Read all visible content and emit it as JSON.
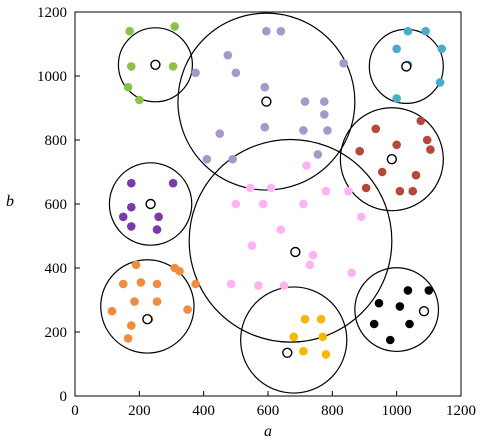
{
  "chart_data": {
    "type": "scatter",
    "title": "",
    "xlabel": "a",
    "ylabel": "b",
    "xlim": [
      0,
      1200
    ],
    "ylim": [
      0,
      1200
    ],
    "x_ticks": [
      0,
      200,
      400,
      600,
      800,
      1000,
      1200
    ],
    "y_ticks": [
      0,
      200,
      400,
      600,
      800,
      1000,
      1200
    ],
    "grid": false,
    "legend": "none",
    "clusters": [
      {
        "color": "#8bc34a",
        "center": [
          250,
          1035
        ],
        "radius": 115,
        "points": [
          [
            170,
            1140
          ],
          [
            310,
            1155
          ],
          [
            175,
            1030
          ],
          [
            305,
            1030
          ],
          [
            165,
            965
          ],
          [
            200,
            925
          ]
        ]
      },
      {
        "color": "#a997c8",
        "center": [
          595,
          920
        ],
        "radius": 275,
        "points": [
          [
            475,
            1065
          ],
          [
            595,
            1140
          ],
          [
            640,
            1140
          ],
          [
            835,
            1040
          ],
          [
            500,
            1010
          ],
          [
            590,
            965
          ],
          [
            375,
            1010
          ],
          [
            715,
            920
          ],
          [
            775,
            920
          ],
          [
            775,
            880
          ],
          [
            450,
            820
          ],
          [
            590,
            840
          ],
          [
            710,
            830
          ],
          [
            785,
            830
          ],
          [
            410,
            740
          ],
          [
            490,
            740
          ],
          [
            755,
            755
          ]
        ]
      },
      {
        "color": "#4aacc8",
        "center": [
          1030,
          1030
        ],
        "radius": 115,
        "points": [
          [
            1035,
            1140
          ],
          [
            1090,
            1140
          ],
          [
            1000,
            1085
          ],
          [
            1140,
            1085
          ],
          [
            1035,
            1035
          ],
          [
            1135,
            980
          ],
          [
            1000,
            930
          ]
        ]
      },
      {
        "color": "#b5473c",
        "center": [
          985,
          740
        ],
        "radius": 160,
        "points": [
          [
            935,
            835
          ],
          [
            1075,
            860
          ],
          [
            885,
            765
          ],
          [
            1000,
            785
          ],
          [
            955,
            700
          ],
          [
            1095,
            800
          ],
          [
            1105,
            770
          ],
          [
            905,
            650
          ],
          [
            1060,
            690
          ],
          [
            1010,
            640
          ],
          [
            1050,
            640
          ]
        ]
      },
      {
        "color": "#7a3aaa",
        "center": [
          235,
          600
        ],
        "radius": 128,
        "points": [
          [
            175,
            665
          ],
          [
            305,
            665
          ],
          [
            150,
            560
          ],
          [
            175,
            590
          ],
          [
            175,
            530
          ],
          [
            260,
            560
          ],
          [
            255,
            520
          ]
        ]
      },
      {
        "color": "#ffb3f0",
        "center": [
          670,
          485
        ],
        "radius": 315,
        "points": [
          [
            720,
            720
          ],
          [
            545,
            650
          ],
          [
            610,
            650
          ],
          [
            780,
            640
          ],
          [
            850,
            640
          ],
          [
            500,
            600
          ],
          [
            585,
            600
          ],
          [
            710,
            600
          ],
          [
            890,
            560
          ],
          [
            640,
            520
          ],
          [
            550,
            470
          ],
          [
            740,
            440
          ],
          [
            730,
            410
          ],
          [
            860,
            385
          ],
          [
            485,
            350
          ],
          [
            570,
            345
          ],
          [
            650,
            345
          ]
        ]
      },
      {
        "color": "#f08c42",
        "center": [
          225,
          280
        ],
        "radius": 145,
        "points": [
          [
            190,
            410
          ],
          [
            310,
            400
          ],
          [
            150,
            350
          ],
          [
            205,
            355
          ],
          [
            255,
            350
          ],
          [
            325,
            390
          ],
          [
            375,
            350
          ],
          [
            185,
            295
          ],
          [
            255,
            295
          ],
          [
            230,
            240
          ],
          [
            350,
            270
          ],
          [
            115,
            265
          ],
          [
            175,
            220
          ],
          [
            165,
            180
          ]
        ]
      },
      {
        "color": "#f5b800",
        "center": [
          680,
          175
        ],
        "radius": 165,
        "points": [
          [
            715,
            240
          ],
          [
            765,
            240
          ],
          [
            680,
            185
          ],
          [
            770,
            185
          ],
          [
            710,
            140
          ],
          [
            780,
            130
          ]
        ]
      },
      {
        "color": "#000000",
        "center": [
          1000,
          270
        ],
        "radius": 130,
        "points": [
          [
            1035,
            330
          ],
          [
            1100,
            330
          ],
          [
            945,
            290
          ],
          [
            1010,
            280
          ],
          [
            930,
            225
          ],
          [
            1040,
            225
          ],
          [
            980,
            175
          ]
        ]
      }
    ],
    "open_markers": [
      [
        250,
        1035
      ],
      [
        595,
        920
      ],
      [
        1030,
        1030
      ],
      [
        985,
        740
      ],
      [
        235,
        600
      ],
      [
        685,
        450
      ],
      [
        225,
        240
      ],
      [
        660,
        135
      ],
      [
        1085,
        265
      ]
    ]
  }
}
